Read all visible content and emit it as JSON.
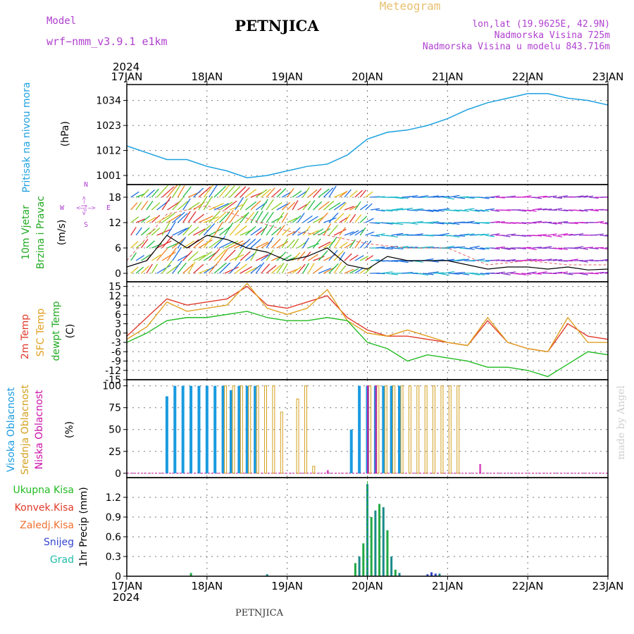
{
  "header": {
    "model_label": "Model",
    "model_name": "wrf−nmm_v3.9.1 e1km",
    "station": "PETNJICA",
    "meteogram_label": "Meteogram",
    "lonlat": "lon,lat (19.9625E, 42.9N)",
    "elevation": "Nadmorska Visina 725m",
    "model_elevation": "Nadmorska Visina u modelu 843.716m",
    "year": "2024",
    "watermark": "made by Angel",
    "footer_station": "PETNJICA"
  },
  "colors": {
    "pressure": "#1da1e0",
    "temp": "#e03a2a",
    "sfc_temp": "#e0a020",
    "dewpoint": "#22bb22",
    "cloud_high": "#1a9be0",
    "cloud_mid": "#d4a020",
    "cloud_low": "#cc11aa",
    "wind_label": "#22aa22",
    "precip_total": "#22aa44",
    "precip_conv": "#dd3333",
    "precip_grid": "#1a8a8a",
    "precip_snow": "#3344cc",
    "grad": "#22bbaa"
  },
  "chart_data": [
    {
      "type": "line",
      "x_ticks": [
        "17JAN",
        "18JAN",
        "19JAN",
        "20JAN",
        "21JAN",
        "22JAN",
        "23JAN"
      ],
      "ylabel_series": "Pritisak na nivou mora",
      "ylabel": "(hPa)",
      "y_ticks": [
        1001,
        1012,
        1023,
        1034
      ],
      "ylim": [
        997,
        1041
      ],
      "grid": true,
      "series": [
        {
          "name": "Pritisak na nivou mora",
          "x": [
            0,
            0.25,
            0.5,
            0.75,
            1,
            1.25,
            1.5,
            1.75,
            2,
            2.25,
            2.5,
            2.75,
            3,
            3.25,
            3.5,
            3.75,
            4,
            4.25,
            4.5,
            4.75,
            5,
            5.25,
            5.5,
            5.75,
            6
          ],
          "values": [
            1014,
            1011,
            1008,
            1008,
            1005,
            1003,
            1000,
            1001,
            1003,
            1005,
            1006,
            1010,
            1017,
            1020,
            1021,
            1023,
            1026,
            1030,
            1033,
            1035,
            1037,
            1037,
            1035,
            1034,
            1032
          ]
        }
      ]
    },
    {
      "type": "line",
      "title": "10m Vjetar Brzina i Pravac",
      "ylabel": "(m/s)",
      "compass": [
        "N",
        "W",
        "E",
        "S"
      ],
      "y_ticks": [
        0,
        6,
        12,
        18
      ],
      "ylim": [
        -2,
        21
      ],
      "grid": true,
      "series": [
        {
          "name": "wind_speed",
          "x": [
            0,
            0.25,
            0.5,
            0.75,
            1,
            1.25,
            1.5,
            1.75,
            2,
            2.25,
            2.5,
            2.75,
            3,
            3.25,
            3.5,
            3.75,
            4,
            4.25,
            4.5,
            4.75,
            5,
            5.25,
            5.5,
            5.75,
            6
          ],
          "values": [
            1.5,
            3,
            9,
            6,
            9,
            8,
            6,
            5,
            3,
            4,
            6,
            2,
            1,
            4,
            3,
            3,
            3,
            2,
            1,
            1.5,
            1.5,
            1,
            1.5,
            0.8,
            1
          ]
        },
        {
          "name": "wind_gust",
          "x": [
            0,
            0.5,
            1,
            1.5,
            2,
            2.5,
            3,
            3.5,
            4,
            4.5,
            5,
            5.5,
            6
          ],
          "values": [
            3,
            14,
            16,
            13,
            10,
            9,
            7,
            6,
            6,
            2,
            3,
            2,
            2
          ]
        }
      ]
    },
    {
      "type": "line",
      "title": "2m Temp / SFC Temp / dewpt Temp",
      "ylabel": "(C)",
      "y_ticks": [
        -15,
        -12,
        -9,
        -6,
        -3,
        0,
        3,
        6,
        9,
        12,
        15
      ],
      "ylim": [
        -15,
        16.5
      ],
      "grid": true,
      "series": [
        {
          "name": "2m Temp",
          "x": [
            0,
            0.25,
            0.5,
            0.75,
            1,
            1.25,
            1.5,
            1.75,
            2,
            2.25,
            2.5,
            2.75,
            3,
            3.25,
            3.5,
            3.75,
            4,
            4.25,
            4.5,
            4.75,
            5,
            5.25,
            5.5,
            5.75,
            6
          ],
          "values": [
            -1,
            5,
            11,
            9,
            10,
            11,
            15,
            9,
            8,
            10,
            12,
            5,
            1,
            -1,
            -1,
            -2,
            -3,
            -4,
            4,
            -3,
            -5,
            -6,
            3,
            -1,
            -2
          ]
        },
        {
          "name": "SFC Temp",
          "x": [
            0,
            0.25,
            0.5,
            0.75,
            1,
            1.25,
            1.5,
            1.75,
            2,
            2.25,
            2.5,
            2.75,
            3,
            3.25,
            3.5,
            3.75,
            4,
            4.25,
            4.5,
            4.75,
            5,
            5.25,
            5.5,
            5.75,
            6
          ],
          "values": [
            -2,
            2,
            10,
            7,
            8,
            9,
            16,
            8,
            6,
            8,
            14,
            4,
            0,
            -1,
            1,
            -1,
            -3,
            -4,
            5,
            -3,
            -5,
            -6,
            5,
            -3,
            -3
          ]
        },
        {
          "name": "dewpt Temp",
          "x": [
            0,
            0.25,
            0.5,
            0.75,
            1,
            1.25,
            1.5,
            1.75,
            2,
            2.25,
            2.5,
            2.75,
            3,
            3.25,
            3.5,
            3.75,
            4,
            4.25,
            4.5,
            4.75,
            5,
            5.25,
            5.5,
            5.75,
            6
          ],
          "values": [
            -3,
            0,
            4,
            5,
            5,
            6,
            7,
            5,
            4,
            4,
            5,
            4,
            -3,
            -5,
            -9,
            -7,
            -8,
            -9,
            -11,
            -11,
            -12,
            -14,
            -10,
            -6,
            -7
          ]
        }
      ]
    },
    {
      "type": "bar",
      "title": "Visoka Oblacnost / Srednja Oblacnost / Niska Oblacnost",
      "ylabel": "(%)",
      "y_ticks": [
        0,
        25,
        50,
        75,
        100
      ],
      "ylim": [
        -5,
        107
      ],
      "grid": true,
      "series": [
        {
          "name": "Visoka Oblacnost",
          "x": [
            0.5,
            0.6,
            0.7,
            0.8,
            0.9,
            1.0,
            1.1,
            1.2,
            1.3,
            1.4,
            1.5,
            1.6,
            2.8,
            2.9,
            3.0,
            3.1,
            3.2,
            3.3,
            3.4
          ],
          "values": [
            88,
            100,
            100,
            100,
            100,
            100,
            100,
            100,
            95,
            100,
            100,
            100,
            50,
            100,
            100,
            100,
            100,
            100,
            100
          ]
        },
        {
          "name": "Srednja Oblacnost",
          "x": [
            1.2,
            1.3,
            1.4,
            1.5,
            1.6,
            1.7,
            1.8,
            1.9,
            2.1,
            2.2,
            2.3,
            3.0,
            3.1,
            3.2,
            3.3,
            3.4,
            3.5,
            3.6,
            3.7,
            3.8,
            3.9,
            4.0,
            4.1
          ],
          "values": [
            100,
            100,
            100,
            100,
            100,
            100,
            100,
            70,
            85,
            100,
            8,
            100,
            100,
            100,
            100,
            100,
            100,
            100,
            100,
            100,
            100,
            100,
            100
          ]
        },
        {
          "name": "Niska Oblacnost",
          "x": [
            2.5,
            3.0,
            3.1,
            4.4
          ],
          "values": [
            3,
            100,
            100,
            10
          ]
        }
      ]
    },
    {
      "type": "bar",
      "ylabel": "1hr Precip (mm)",
      "y_ticks": [
        0,
        0.3,
        0.6,
        0.9,
        1.2
      ],
      "ylim": [
        0,
        1.5
      ],
      "grid": true,
      "legend": [
        "Ukupna Kisa",
        "Konvek.Kisa",
        "Zaledj.Kisa",
        "Snijeg",
        "Grad"
      ],
      "series": [
        {
          "name": "Ukupna Kisa",
          "x": [
            0.8,
            1.75,
            2.85,
            2.9,
            2.95,
            3.0,
            3.05,
            3.1,
            3.15,
            3.2,
            3.25,
            3.3,
            3.35,
            3.4,
            3.8,
            3.9
          ],
          "values": [
            0.05,
            0.03,
            0.2,
            0.3,
            0.5,
            1.4,
            0.9,
            1.0,
            1.1,
            1.05,
            0.7,
            0.3,
            0.1,
            0.05,
            0.05,
            0.04
          ]
        },
        {
          "name": "Snijeg",
          "x": [
            3.75,
            3.8,
            3.85
          ],
          "values": [
            0.03,
            0.06,
            0.04
          ]
        }
      ]
    }
  ]
}
